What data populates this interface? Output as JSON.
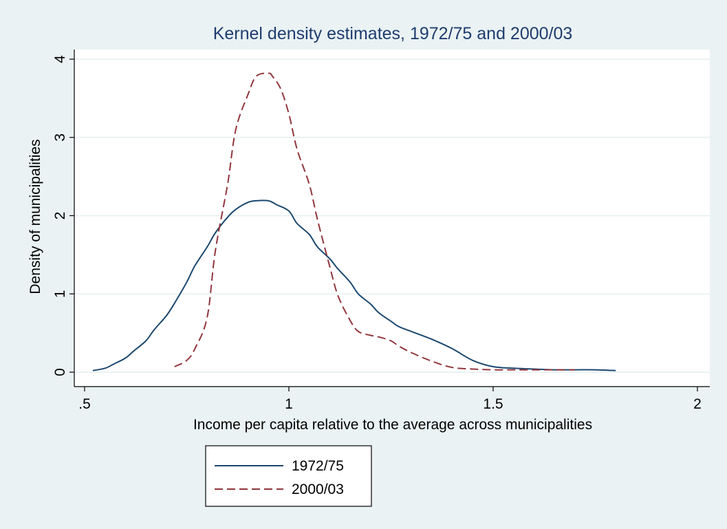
{
  "chart_data": {
    "type": "line",
    "title": "Kernel density estimates, 1972/75 and 2000/03",
    "xlabel": "Income per capita relative to the average across municipalities",
    "ylabel": "Density of municipalities",
    "xlim": [
      0.5,
      2.0
    ],
    "ylim": [
      0,
      4
    ],
    "x_ticks": [
      ".5",
      "1",
      "1.5",
      "2"
    ],
    "y_ticks": [
      "0",
      "1",
      "2",
      "3",
      "4"
    ],
    "grid": true,
    "legend_position": "bottom",
    "colors": {
      "background": "#eaf2f3",
      "plot_area": "#ffffff",
      "title": "#1e3c6e",
      "series_1972": "#1a476f",
      "series_2000": "#90353b"
    },
    "series": [
      {
        "name": "1972/75",
        "style": "solid",
        "x": [
          0.52,
          0.55,
          0.57,
          0.6,
          0.62,
          0.65,
          0.67,
          0.7,
          0.72,
          0.75,
          0.77,
          0.8,
          0.82,
          0.85,
          0.87,
          0.9,
          0.92,
          0.95,
          0.97,
          1.0,
          1.02,
          1.05,
          1.07,
          1.1,
          1.12,
          1.15,
          1.17,
          1.2,
          1.22,
          1.25,
          1.27,
          1.3,
          1.35,
          1.4,
          1.45,
          1.5,
          1.55,
          1.6,
          1.65,
          1.7,
          1.75,
          1.8
        ],
        "y": [
          0.02,
          0.05,
          0.1,
          0.18,
          0.27,
          0.4,
          0.54,
          0.72,
          0.88,
          1.15,
          1.36,
          1.6,
          1.78,
          1.98,
          2.08,
          2.17,
          2.19,
          2.19,
          2.14,
          2.06,
          1.9,
          1.76,
          1.6,
          1.45,
          1.32,
          1.15,
          1.0,
          0.87,
          0.76,
          0.65,
          0.58,
          0.52,
          0.42,
          0.3,
          0.15,
          0.07,
          0.05,
          0.04,
          0.03,
          0.03,
          0.03,
          0.02
        ]
      },
      {
        "name": "2000/03",
        "style": "dashed",
        "x": [
          0.72,
          0.75,
          0.77,
          0.8,
          0.82,
          0.85,
          0.87,
          0.9,
          0.92,
          0.95,
          0.96,
          0.98,
          1.0,
          1.02,
          1.05,
          1.07,
          1.1,
          1.12,
          1.15,
          1.17,
          1.2,
          1.22,
          1.25,
          1.27,
          1.3,
          1.35,
          1.4,
          1.45,
          1.5,
          1.55,
          1.6,
          1.65,
          1.7
        ],
        "y": [
          0.07,
          0.15,
          0.3,
          0.7,
          1.55,
          2.4,
          3.1,
          3.55,
          3.78,
          3.82,
          3.78,
          3.62,
          3.3,
          2.85,
          2.4,
          1.95,
          1.35,
          0.98,
          0.66,
          0.52,
          0.47,
          0.45,
          0.4,
          0.33,
          0.25,
          0.14,
          0.06,
          0.04,
          0.03,
          0.03,
          0.03,
          0.03,
          0.03
        ]
      }
    ]
  }
}
